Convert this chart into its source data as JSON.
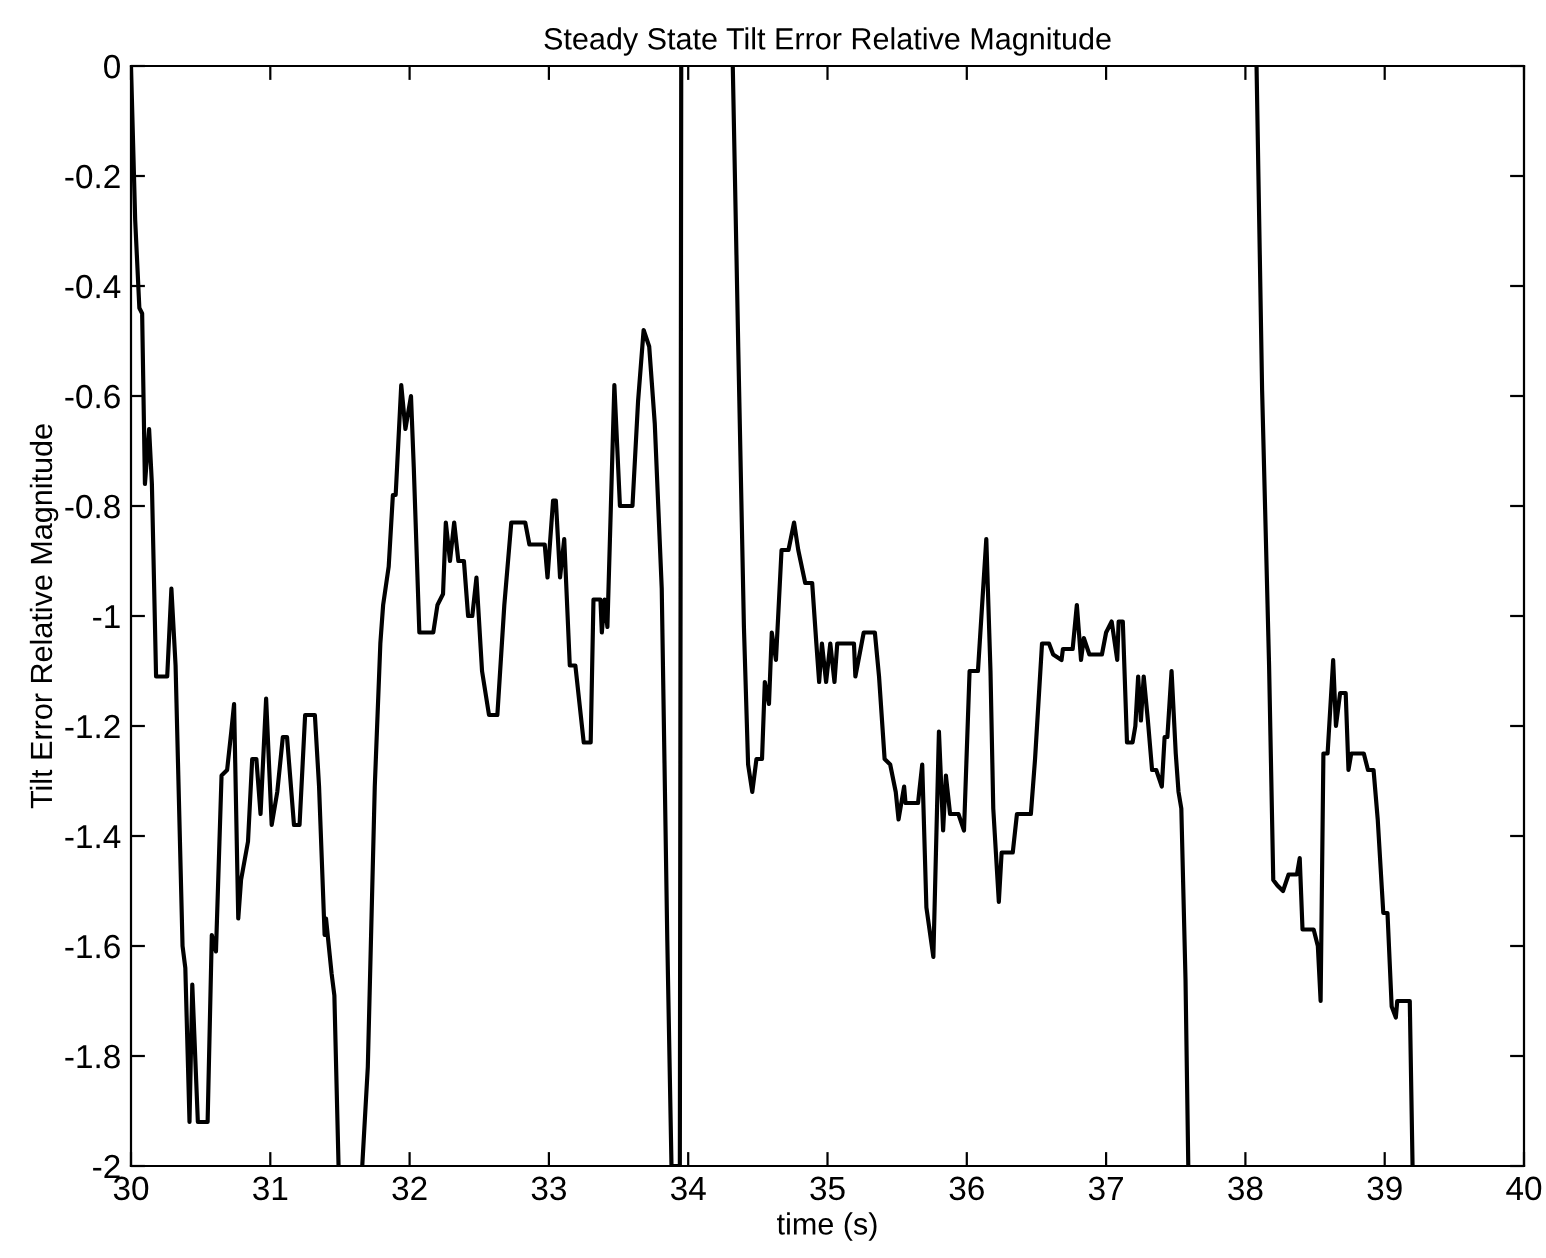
{
  "chart_data": {
    "type": "line",
    "title": "Steady State Tilt Error Relative Magnitude",
    "xlabel": "time (s)",
    "ylabel": "Tilt Error Relative Magnitude",
    "xlim": [
      30,
      40
    ],
    "ylim": [
      -2,
      0
    ],
    "xticks": [
      30,
      31,
      32,
      33,
      34,
      35,
      36,
      37,
      38,
      39,
      40
    ],
    "yticks": [
      -2,
      -1.8,
      -1.6,
      -1.4,
      -1.2,
      -1,
      -0.8,
      -0.6,
      -0.4,
      -0.2,
      0
    ],
    "grid": false,
    "marker": "none",
    "line_style": "solid",
    "series": [
      {
        "color": "#000000",
        "x": [
          30.0,
          30.03,
          30.06,
          30.08,
          30.1,
          30.13,
          30.15,
          30.18,
          30.26,
          30.29,
          30.32,
          30.37,
          30.39,
          30.42,
          30.44,
          30.48,
          30.55,
          30.58,
          30.61,
          30.65,
          30.69,
          30.72,
          30.74,
          30.77,
          30.79,
          30.84,
          30.87,
          30.9,
          30.93,
          30.97,
          31.01,
          31.05,
          31.09,
          31.12,
          31.17,
          31.21,
          31.25,
          31.32,
          31.35,
          31.39,
          31.4,
          31.44,
          31.46,
          31.49,
          31.57,
          31.66,
          31.7,
          31.75,
          31.79,
          31.81,
          31.85,
          31.88,
          31.9,
          31.94,
          31.97,
          32.01,
          32.03,
          32.07,
          32.17,
          32.2,
          32.24,
          32.26,
          32.29,
          32.32,
          32.35,
          32.39,
          32.42,
          32.45,
          32.48,
          32.52,
          32.57,
          32.63,
          32.68,
          32.73,
          32.83,
          32.86,
          32.97,
          32.99,
          33.03,
          33.05,
          33.08,
          33.11,
          33.15,
          33.19,
          33.25,
          33.3,
          33.32,
          33.37,
          33.38,
          33.4,
          33.42,
          33.47,
          33.51,
          33.6,
          33.64,
          33.68,
          33.72,
          33.76,
          33.81,
          33.85,
          33.88,
          33.91,
          33.94,
          33.95,
          34.1,
          34.32,
          34.36,
          34.4,
          34.43,
          34.46,
          34.49,
          34.53,
          34.55,
          34.58,
          34.6,
          34.63,
          34.67,
          34.72,
          34.76,
          34.79,
          34.84,
          34.89,
          34.92,
          34.94,
          34.96,
          34.99,
          35.02,
          35.05,
          35.07,
          35.19,
          35.2,
          35.26,
          35.34,
          35.37,
          35.41,
          35.45,
          35.49,
          35.51,
          35.55,
          35.56,
          35.65,
          35.68,
          35.71,
          35.76,
          35.8,
          35.83,
          35.85,
          35.88,
          35.94,
          35.98,
          36.02,
          36.08,
          36.14,
          36.17,
          36.19,
          36.23,
          36.25,
          36.33,
          36.36,
          36.46,
          36.49,
          36.54,
          36.59,
          36.62,
          36.68,
          36.69,
          36.76,
          36.79,
          36.82,
          36.84,
          36.88,
          36.97,
          37.0,
          37.04,
          37.08,
          37.09,
          37.12,
          37.15,
          37.19,
          37.21,
          37.23,
          37.25,
          37.27,
          37.3,
          37.33,
          37.36,
          37.4,
          37.42,
          37.44,
          37.47,
          37.5,
          37.52,
          37.54,
          37.57,
          37.59,
          37.8,
          38.08,
          38.12,
          38.17,
          38.2,
          38.23,
          38.27,
          38.31,
          38.37,
          38.39,
          38.41,
          38.49,
          38.52,
          38.54,
          38.56,
          38.59,
          38.63,
          38.65,
          38.68,
          38.72,
          38.74,
          38.76,
          38.85,
          38.88,
          38.92,
          38.95,
          38.99,
          39.02,
          39.05,
          39.08,
          39.09,
          39.18,
          39.2
        ],
        "values": [
          0,
          -0.28,
          -0.44,
          -0.45,
          -0.76,
          -0.66,
          -0.76,
          -1.11,
          -1.11,
          -0.95,
          -1.09,
          -1.6,
          -1.64,
          -1.92,
          -1.67,
          -1.92,
          -1.92,
          -1.58,
          -1.61,
          -1.29,
          -1.28,
          -1.21,
          -1.16,
          -1.55,
          -1.48,
          -1.41,
          -1.26,
          -1.26,
          -1.36,
          -1.15,
          -1.38,
          -1.32,
          -1.22,
          -1.22,
          -1.38,
          -1.38,
          -1.18,
          -1.18,
          -1.31,
          -1.58,
          -1.55,
          -1.65,
          -1.69,
          -2,
          null,
          -2,
          -1.82,
          -1.31,
          -1.05,
          -0.98,
          -0.91,
          -0.78,
          -0.78,
          -0.58,
          -0.66,
          -0.6,
          -0.73,
          -1.03,
          -1.03,
          -0.98,
          -0.96,
          -0.83,
          -0.9,
          -0.83,
          -0.9,
          -0.9,
          -1.0,
          -1.0,
          -0.93,
          -1.1,
          -1.18,
          -1.18,
          -0.98,
          -0.83,
          -0.83,
          -0.87,
          -0.87,
          -0.93,
          -0.79,
          -0.79,
          -0.93,
          -0.86,
          -1.09,
          -1.09,
          -1.23,
          -1.23,
          -0.97,
          -0.97,
          -1.03,
          -0.97,
          -1.02,
          -0.58,
          -0.8,
          -0.8,
          -0.61,
          -0.48,
          -0.51,
          -0.65,
          -0.95,
          -1.59,
          -2,
          -2,
          -2,
          0,
          null,
          0,
          -0.52,
          -1.02,
          -1.27,
          -1.32,
          -1.26,
          -1.26,
          -1.12,
          -1.16,
          -1.03,
          -1.08,
          -0.88,
          -0.88,
          -0.83,
          -0.88,
          -0.94,
          -0.94,
          -1.05,
          -1.12,
          -1.05,
          -1.12,
          -1.05,
          -1.12,
          -1.05,
          -1.05,
          -1.11,
          -1.03,
          -1.03,
          -1.11,
          -1.26,
          -1.27,
          -1.32,
          -1.37,
          -1.31,
          -1.34,
          -1.34,
          -1.27,
          -1.53,
          -1.62,
          -1.21,
          -1.39,
          -1.29,
          -1.36,
          -1.36,
          -1.39,
          -1.1,
          -1.1,
          -0.86,
          -1.1,
          -1.35,
          -1.52,
          -1.43,
          -1.43,
          -1.36,
          -1.36,
          -1.26,
          -1.05,
          -1.05,
          -1.07,
          -1.08,
          -1.06,
          -1.06,
          -0.98,
          -1.08,
          -1.04,
          -1.07,
          -1.07,
          -1.03,
          -1.01,
          -1.08,
          -1.01,
          -1.01,
          -1.23,
          -1.23,
          -1.2,
          -1.11,
          -1.19,
          -1.11,
          -1.19,
          -1.28,
          -1.28,
          -1.31,
          -1.22,
          -1.22,
          -1.1,
          -1.25,
          -1.32,
          -1.35,
          -1.66,
          -2,
          null,
          0,
          -0.59,
          -1.09,
          -1.48,
          -1.49,
          -1.5,
          -1.47,
          -1.47,
          -1.44,
          -1.57,
          -1.57,
          -1.6,
          -1.7,
          -1.25,
          -1.25,
          -1.08,
          -1.2,
          -1.14,
          -1.14,
          -1.28,
          -1.25,
          -1.25,
          -1.28,
          -1.28,
          -1.37,
          -1.54,
          -1.54,
          -1.71,
          -1.73,
          -1.7,
          -1.7,
          -2
        ]
      }
    ]
  }
}
